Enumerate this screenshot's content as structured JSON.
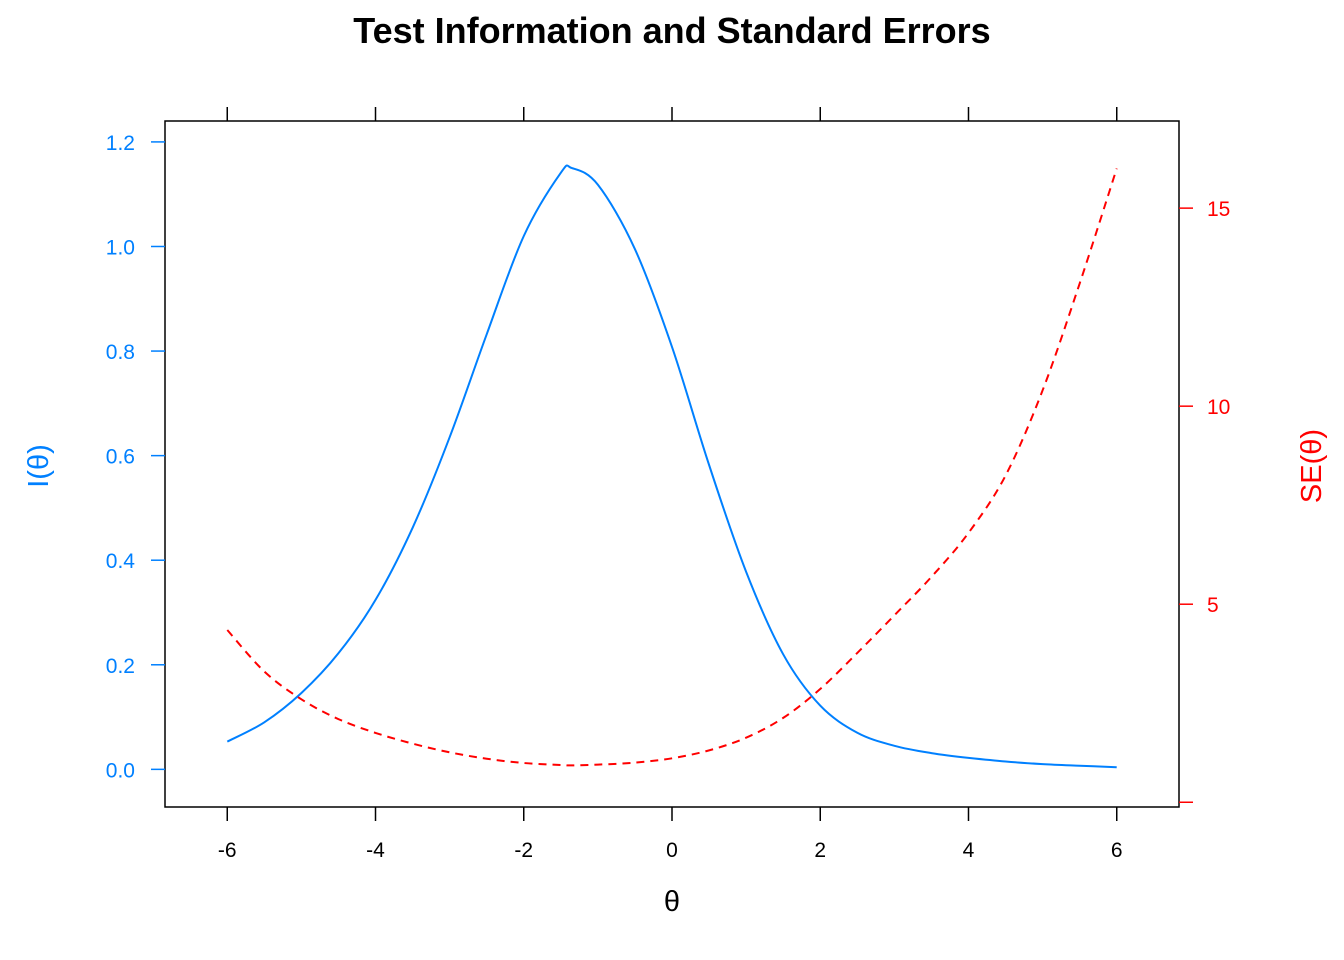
{
  "chart_data": {
    "type": "line",
    "title": "Test Information and Standard Errors",
    "xlabel": "θ",
    "ylabel_left": "I(θ)",
    "ylabel_right": "SE(θ)",
    "xlim": [
      -6.84,
      6.84
    ],
    "ylim_left": [
      -0.072,
      1.24
    ],
    "ylim_right": [
      -0.12,
      17.2
    ],
    "x_ticks": [
      -6,
      -4,
      -2,
      0,
      2,
      4,
      6
    ],
    "y_left_ticks": [
      0.0,
      0.2,
      0.4,
      0.6,
      0.8,
      1.0,
      1.2
    ],
    "y_right_ticks": [
      0,
      5,
      10,
      15
    ],
    "x_tick_labels": [
      "-6",
      "-4",
      "-2",
      "0",
      "2",
      "4",
      "6"
    ],
    "y_left_tick_labels": [
      "0.0",
      "0.2",
      "0.4",
      "0.6",
      "0.8",
      "1.0",
      "1.2"
    ],
    "y_right_tick_labels": [
      "",
      "5",
      "10",
      "15"
    ],
    "grid": false,
    "colors": {
      "information": "#0080ff",
      "standard_error": "#ff0000",
      "axis": "#000000"
    },
    "series": [
      {
        "axis": "left",
        "line": "solid",
        "x": [
          -6,
          -5.5,
          -5,
          -4.5,
          -4,
          -3.5,
          -3,
          -2.5,
          -2,
          -1.5,
          -1.35,
          -1,
          -0.5,
          0,
          0.5,
          1,
          1.5,
          2,
          2.5,
          3,
          3.5,
          4,
          4.5,
          5,
          5.5,
          6
        ],
        "y": [
          0.053,
          0.09,
          0.146,
          0.222,
          0.324,
          0.462,
          0.635,
          0.832,
          1.02,
          1.141,
          1.15,
          1.118,
          0.995,
          0.808,
          0.582,
          0.378,
          0.22,
          0.122,
          0.07,
          0.045,
          0.031,
          0.022,
          0.015,
          0.01,
          0.007,
          0.004
        ]
      },
      {
        "axis": "right",
        "line": "dashed",
        "x": [
          -6,
          -5.5,
          -5,
          -4.5,
          -4,
          -3.5,
          -3,
          -2.5,
          -2,
          -1.5,
          -1.35,
          -1,
          -0.5,
          0,
          0.5,
          1,
          1.5,
          2,
          2.5,
          3,
          3.5,
          4,
          4.5,
          5,
          5.5,
          6
        ],
        "y": [
          4.35,
          3.3,
          2.6,
          2.1,
          1.75,
          1.48,
          1.26,
          1.1,
          0.99,
          0.94,
          0.93,
          0.95,
          1.0,
          1.11,
          1.31,
          1.63,
          2.13,
          2.86,
          3.77,
          4.72,
          5.69,
          6.8,
          8.25,
          10.4,
          13.1,
          16.0
        ]
      }
    ]
  }
}
